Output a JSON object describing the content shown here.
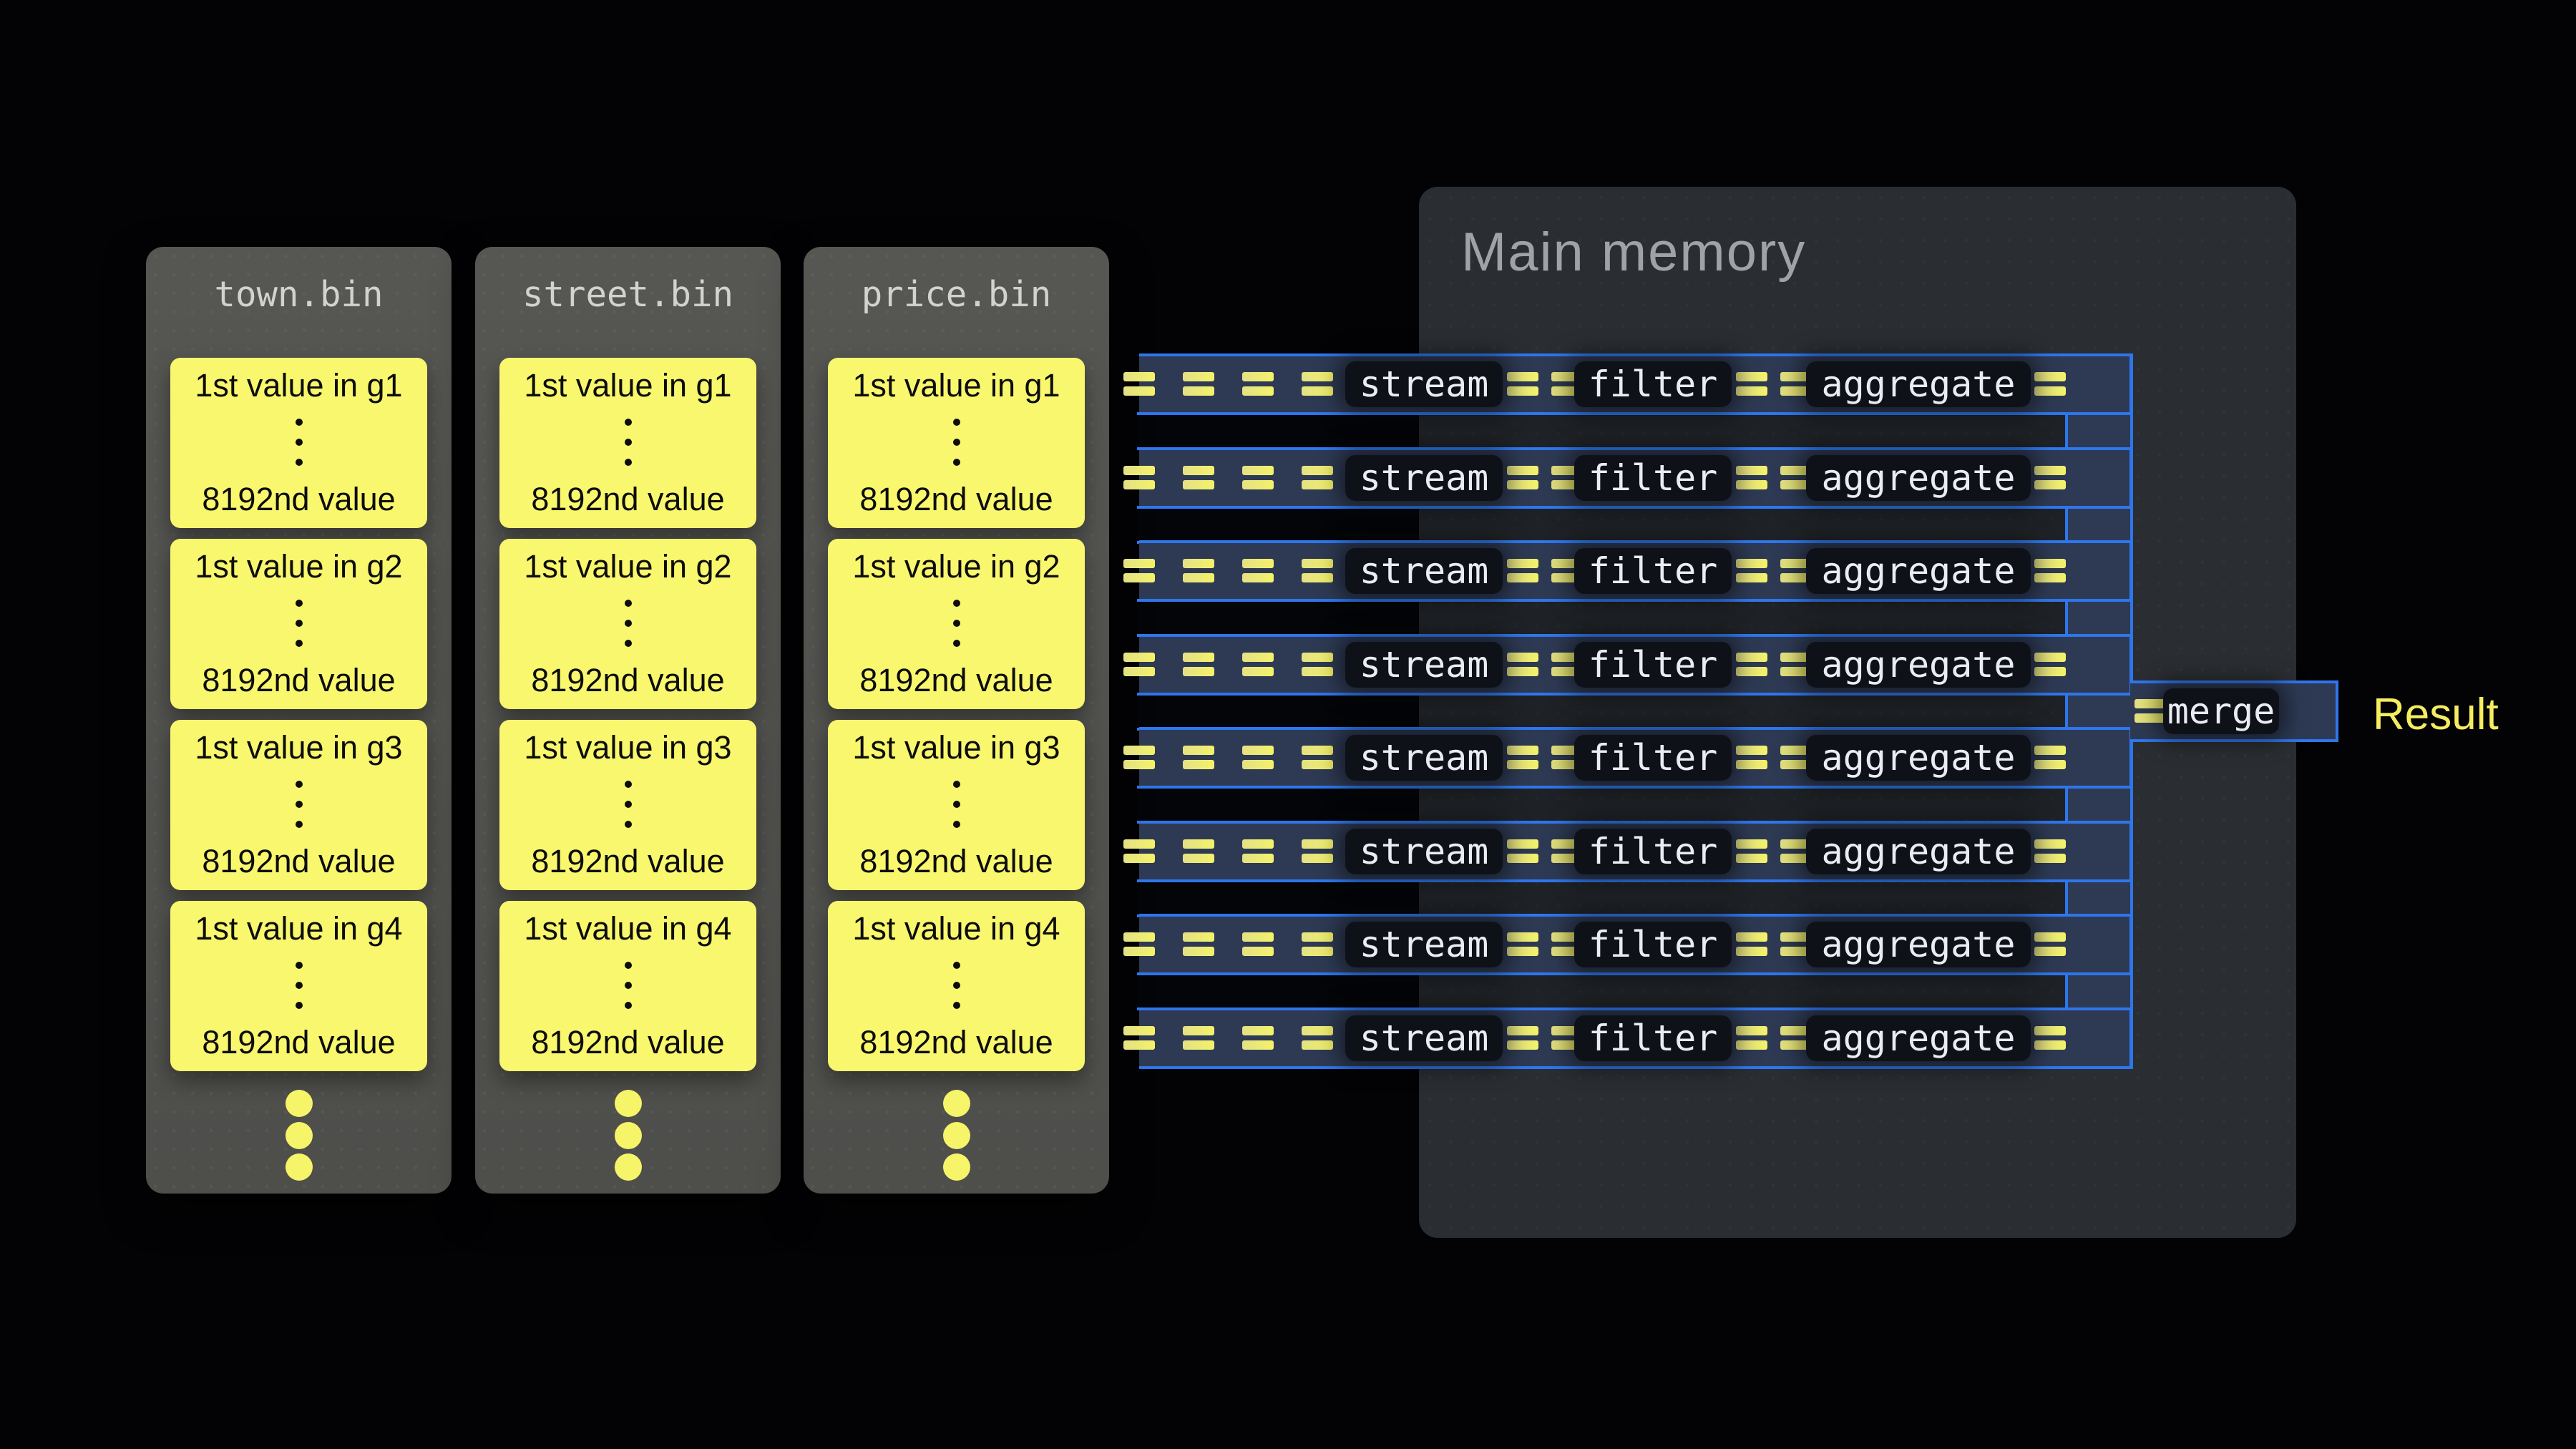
{
  "files": [
    {
      "name": "town.bin",
      "groups": [
        {
          "first": "1st value in g1",
          "last": "8192nd value"
        },
        {
          "first": "1st value in g2",
          "last": "8192nd value"
        },
        {
          "first": "1st value in g3",
          "last": "8192nd value"
        },
        {
          "first": "1st value in g4",
          "last": "8192nd value"
        }
      ]
    },
    {
      "name": "street.bin",
      "groups": [
        {
          "first": "1st value in g1",
          "last": "8192nd value"
        },
        {
          "first": "1st value in g2",
          "last": "8192nd value"
        },
        {
          "first": "1st value in g3",
          "last": "8192nd value"
        },
        {
          "first": "1st value in g4",
          "last": "8192nd value"
        }
      ]
    },
    {
      "name": "price.bin",
      "groups": [
        {
          "first": "1st value in g1",
          "last": "8192nd value"
        },
        {
          "first": "1st value in g2",
          "last": "8192nd value"
        },
        {
          "first": "1st value in g3",
          "last": "8192nd value"
        },
        {
          "first": "1st value in g4",
          "last": "8192nd value"
        }
      ]
    }
  ],
  "main_memory": {
    "title": "Main memory"
  },
  "pipeline": {
    "count": 8,
    "stages": [
      "stream",
      "filter",
      "aggregate"
    ],
    "merge_label": "merge"
  },
  "result_label": "Result",
  "colors": {
    "background": "#030305",
    "panel_bg": "#525250",
    "panel_header_text": "#d2d2d0",
    "value_box_yellow": "#f9f76d",
    "value_box_text": "#0d0d0d",
    "memory_bg": "#2a2d31",
    "memory_title_text": "#9fa3a6",
    "pipeline_fill": "#2e3a54",
    "pipeline_border_blue": "#2e76ec",
    "stage_pill_bg": "#0e1218",
    "stage_pill_text": "#e9edf3",
    "flow_equals_yellow": "#f1ef6d",
    "result_text": "#f5ed60"
  }
}
